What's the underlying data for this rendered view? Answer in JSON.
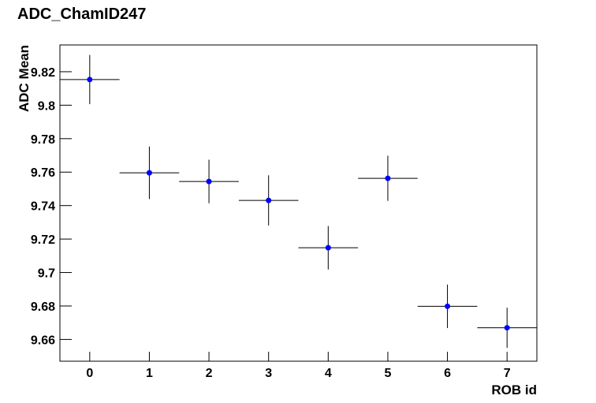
{
  "chart_data": {
    "type": "scatter",
    "title": "ADC_ChamID247",
    "x_label": "ROB id",
    "y_label": "ADC Mean",
    "color": "#0000ff",
    "x": [
      0,
      1,
      2,
      3,
      4,
      5,
      6,
      7
    ],
    "values": [
      9.8153,
      9.7596,
      9.7544,
      9.7431,
      9.7148,
      9.7563,
      9.6798,
      9.667
    ],
    "errors": [
      0.0147,
      0.0157,
      0.013,
      0.015,
      0.013,
      0.0135,
      0.013,
      0.012
    ],
    "xerrors": [
      0.5,
      0.5,
      0.5,
      0.5,
      0.5,
      0.5,
      0.5,
      0.5
    ],
    "xlim": [
      -0.5,
      7.5
    ],
    "ylim": [
      9.647,
      9.836
    ],
    "xticks": [
      0,
      1,
      2,
      3,
      4,
      5,
      6,
      7
    ],
    "yticks": [
      9.66,
      9.68,
      9.7,
      9.72,
      9.74,
      9.76,
      9.78,
      9.8,
      9.82
    ]
  }
}
